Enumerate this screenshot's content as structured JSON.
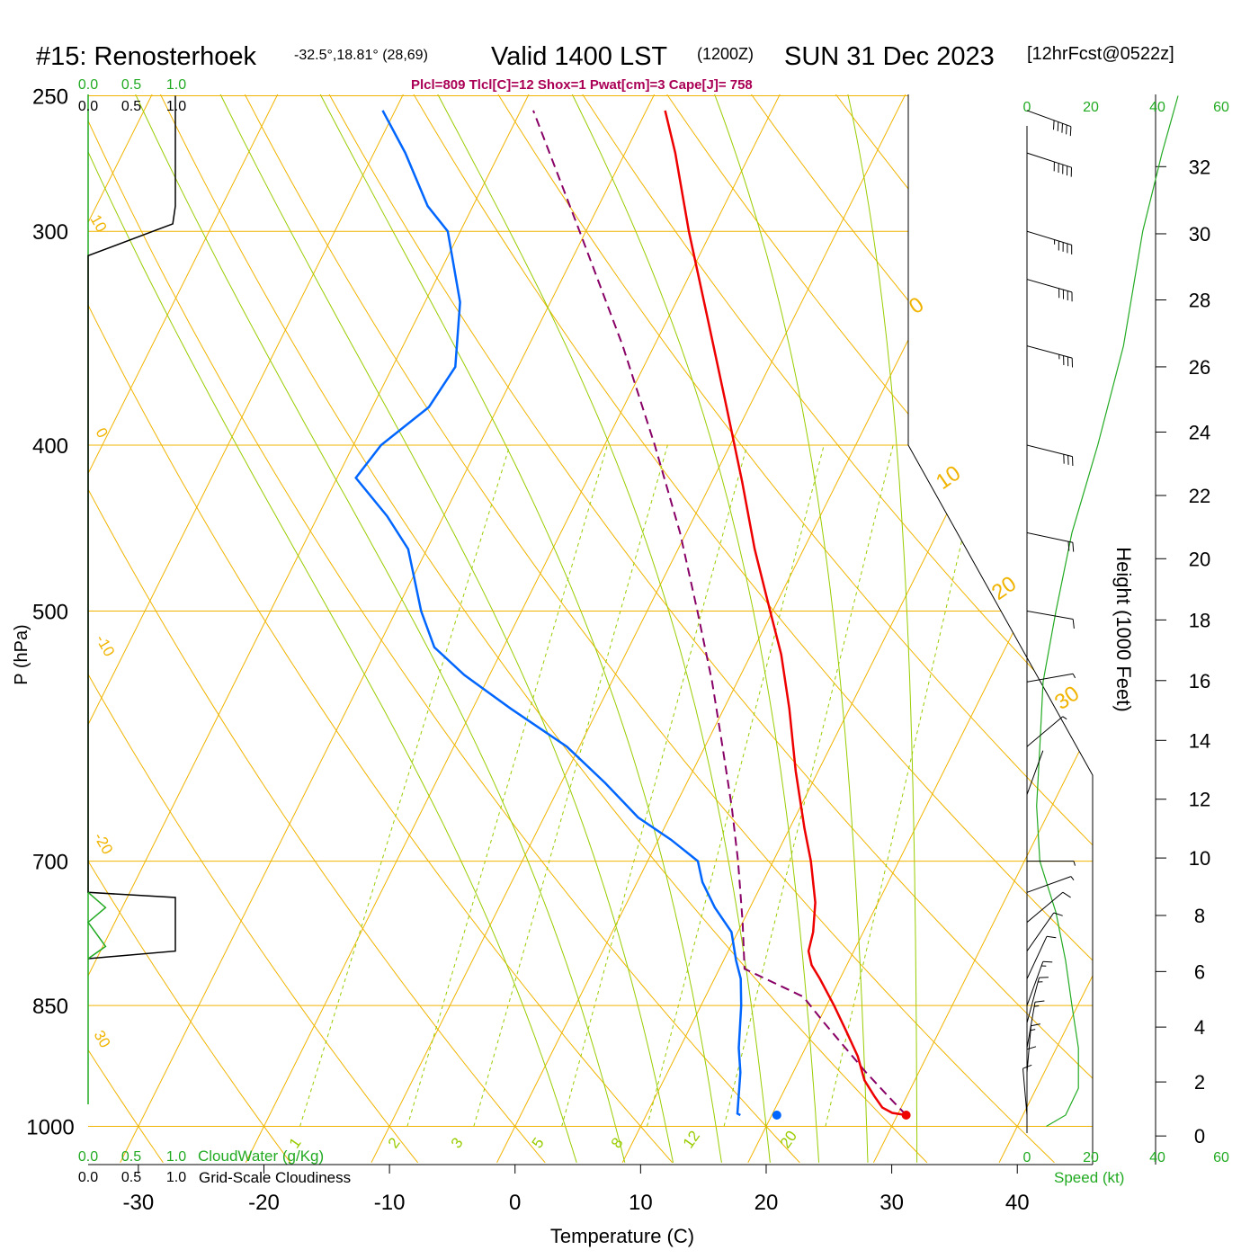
{
  "header": {
    "station": "#15: Renosterhoek",
    "coords": "-32.5°,18.81° (28,69)",
    "valid": "Valid 1400 LST",
    "zulu": "(1200Z)",
    "date": "SUN 31 Dec 2023",
    "fcst": "[12hrFcst@0522z]"
  },
  "indices": "Plcl=809 Tlcl[C]=12 Shox=1 Pwat[cm]=3 Cape[J]= 758",
  "labels": {
    "xlabel": "Temperature (C)",
    "ylabel": "P (hPa)",
    "height_label": "Height (1000 Feet)",
    "cloudwater": "CloudWater (g/Kg)",
    "cloudiness": "Grid-Scale Cloudiness",
    "speed": "Speed (kt)"
  },
  "colors": {
    "temperature": "#ee0000",
    "dewpoint": "#0066ff",
    "parcel": "#880066",
    "isotherm": "#f0b400",
    "dry_adiabat": "#f0b400",
    "moist_adiabat": "#99cc00",
    "mixing_ratio": "#99cc00",
    "cloud_green": "#22aa22",
    "indices": "#aa0055"
  },
  "chart_data": {
    "type": "skew-t",
    "xlim": [
      -34,
      46
    ],
    "ylim_pressure": [
      1030,
      250
    ],
    "x_ticks": [
      -30,
      -20,
      -10,
      0,
      10,
      20,
      30,
      40
    ],
    "pressure_ticks": [
      250,
      300,
      400,
      500,
      700,
      850,
      1000
    ],
    "height_ticks_kft": [
      0,
      2,
      4,
      6,
      8,
      10,
      12,
      14,
      16,
      18,
      20,
      22,
      24,
      26,
      28,
      30,
      32
    ],
    "cloud_ticks": [
      "0.0",
      "0.5",
      "1.0"
    ],
    "speed_ticks": [
      "0",
      "20",
      "40",
      "60"
    ],
    "isotherm_labels": [
      "0",
      "10",
      "20",
      "30"
    ],
    "dry_adiabat_labels": [
      "10",
      "0",
      "-10",
      "-20",
      "30"
    ],
    "mixing_ratio_labels": [
      "1",
      "2",
      "3",
      "5",
      "8",
      "12",
      "20"
    ],
    "temperature": [
      {
        "p": 985,
        "t": 30.7
      },
      {
        "p": 982,
        "t": 29.5
      },
      {
        "p": 975,
        "t": 28.5
      },
      {
        "p": 960,
        "t": 27.4
      },
      {
        "p": 940,
        "t": 26.0
      },
      {
        "p": 910,
        "t": 24.5
      },
      {
        "p": 880,
        "t": 22.6
      },
      {
        "p": 850,
        "t": 20.6
      },
      {
        "p": 820,
        "t": 18.4
      },
      {
        "p": 805,
        "t": 17.2
      },
      {
        "p": 790,
        "t": 16.4
      },
      {
        "p": 770,
        "t": 16.0
      },
      {
        "p": 740,
        "t": 15.0
      },
      {
        "p": 700,
        "t": 13.0
      },
      {
        "p": 670,
        "t": 11.2
      },
      {
        "p": 620,
        "t": 8.2
      },
      {
        "p": 570,
        "t": 5.2
      },
      {
        "p": 530,
        "t": 2.4
      },
      {
        "p": 500,
        "t": -0.2
      },
      {
        "p": 460,
        "t": -3.9
      },
      {
        "p": 420,
        "t": -7.6
      },
      {
        "p": 380,
        "t": -11.8
      },
      {
        "p": 340,
        "t": -16.5
      },
      {
        "p": 300,
        "t": -21.8
      },
      {
        "p": 270,
        "t": -26.0
      },
      {
        "p": 255,
        "t": -28.5
      }
    ],
    "dewpoint": [
      {
        "p": 985,
        "t": 17.5
      },
      {
        "p": 983,
        "t": 17.2
      },
      {
        "p": 960,
        "t": 16.6
      },
      {
        "p": 930,
        "t": 15.8
      },
      {
        "p": 900,
        "t": 14.7
      },
      {
        "p": 850,
        "t": 13.2
      },
      {
        "p": 820,
        "t": 12.1
      },
      {
        "p": 800,
        "t": 11.0
      },
      {
        "p": 770,
        "t": 9.5
      },
      {
        "p": 745,
        "t": 7.2
      },
      {
        "p": 720,
        "t": 5.2
      },
      {
        "p": 700,
        "t": 4.0
      },
      {
        "p": 680,
        "t": 1.0
      },
      {
        "p": 660,
        "t": -2.5
      },
      {
        "p": 630,
        "t": -6.5
      },
      {
        "p": 600,
        "t": -11.0
      },
      {
        "p": 570,
        "t": -17.0
      },
      {
        "p": 545,
        "t": -22.0
      },
      {
        "p": 525,
        "t": -25.5
      },
      {
        "p": 500,
        "t": -28.0
      },
      {
        "p": 460,
        "t": -31.5
      },
      {
        "p": 440,
        "t": -34.5
      },
      {
        "p": 418,
        "t": -38.5
      },
      {
        "p": 400,
        "t": -37.8
      },
      {
        "p": 380,
        "t": -35.5
      },
      {
        "p": 360,
        "t": -35.0
      },
      {
        "p": 330,
        "t": -37.2
      },
      {
        "p": 300,
        "t": -41.0
      },
      {
        "p": 290,
        "t": -43.6
      },
      {
        "p": 270,
        "t": -47.5
      },
      {
        "p": 255,
        "t": -51.0
      }
    ],
    "parcel": [
      {
        "p": 985,
        "t": 30.7
      },
      {
        "p": 960,
        "t": 28.5
      },
      {
        "p": 930,
        "t": 25.8
      },
      {
        "p": 900,
        "t": 23.2
      },
      {
        "p": 870,
        "t": 20.5
      },
      {
        "p": 840,
        "t": 17.8
      },
      {
        "p": 809,
        "t": 12.0
      },
      {
        "p": 760,
        "t": 10.0
      },
      {
        "p": 700,
        "t": 7.2
      },
      {
        "p": 650,
        "t": 4.5
      },
      {
        "p": 600,
        "t": 1.4
      },
      {
        "p": 550,
        "t": -2.0
      },
      {
        "p": 500,
        "t": -6.0
      },
      {
        "p": 450,
        "t": -10.5
      },
      {
        "p": 400,
        "t": -16.0
      },
      {
        "p": 350,
        "t": -22.5
      },
      {
        "p": 300,
        "t": -30.5
      },
      {
        "p": 255,
        "t": -39.0
      }
    ],
    "height_axis_profile": [
      {
        "kft": 0,
        "p": 1013
      },
      {
        "kft": 2,
        "p": 942
      },
      {
        "kft": 4,
        "p": 875
      },
      {
        "kft": 6,
        "p": 812
      },
      {
        "kft": 8,
        "p": 753
      },
      {
        "kft": 10,
        "p": 697
      },
      {
        "kft": 12,
        "p": 644
      },
      {
        "kft": 14,
        "p": 595
      },
      {
        "kft": 16,
        "p": 549
      },
      {
        "kft": 18,
        "p": 506
      },
      {
        "kft": 20,
        "p": 466
      },
      {
        "kft": 22,
        "p": 428
      },
      {
        "kft": 24,
        "p": 393
      },
      {
        "kft": 26,
        "p": 360
      },
      {
        "kft": 28,
        "p": 329
      },
      {
        "kft": 30,
        "p": 301
      },
      {
        "kft": 32,
        "p": 275
      }
    ],
    "wind_speed_kt": [
      {
        "p": 1000,
        "v": 6
      },
      {
        "p": 985,
        "v": 12
      },
      {
        "p": 950,
        "v": 16
      },
      {
        "p": 900,
        "v": 16
      },
      {
        "p": 850,
        "v": 14
      },
      {
        "p": 800,
        "v": 12
      },
      {
        "p": 750,
        "v": 9
      },
      {
        "p": 700,
        "v": 4
      },
      {
        "p": 650,
        "v": 3
      },
      {
        "p": 600,
        "v": 4
      },
      {
        "p": 550,
        "v": 5
      },
      {
        "p": 500,
        "v": 9
      },
      {
        "p": 450,
        "v": 14
      },
      {
        "p": 400,
        "v": 22
      },
      {
        "p": 350,
        "v": 30
      },
      {
        "p": 300,
        "v": 36
      },
      {
        "p": 270,
        "v": 42
      },
      {
        "p": 250,
        "v": 47
      }
    ],
    "cloud_fraction": [
      {
        "p": 250,
        "f": 1.0
      },
      {
        "p": 290,
        "f": 1.0
      },
      {
        "p": 297,
        "f": 0.97
      },
      {
        "p": 310,
        "f": 0.0
      },
      {
        "p": 730,
        "f": 0.0
      },
      {
        "p": 735,
        "f": 1.0
      },
      {
        "p": 790,
        "f": 1.0
      },
      {
        "p": 798,
        "f": 0.0
      }
    ],
    "cloud_water": [
      {
        "p": 730,
        "q": 0.0
      },
      {
        "p": 745,
        "q": 0.2
      },
      {
        "p": 760,
        "q": 0.0
      },
      {
        "p": 785,
        "q": 0.2
      },
      {
        "p": 798,
        "q": 0.0
      }
    ],
    "winds": [
      {
        "p": 985,
        "dir": 175,
        "spd": 12
      },
      {
        "p": 960,
        "dir": 180,
        "spd": 14
      },
      {
        "p": 930,
        "dir": 185,
        "spd": 15
      },
      {
        "p": 900,
        "dir": 190,
        "spd": 16
      },
      {
        "p": 870,
        "dir": 195,
        "spd": 16
      },
      {
        "p": 850,
        "dir": 200,
        "spd": 15
      },
      {
        "p": 820,
        "dir": 205,
        "spd": 13
      },
      {
        "p": 790,
        "dir": 215,
        "spd": 12
      },
      {
        "p": 760,
        "dir": 230,
        "spd": 10
      },
      {
        "p": 730,
        "dir": 250,
        "spd": 8
      },
      {
        "p": 700,
        "dir": 270,
        "spd": 5
      },
      {
        "p": 640,
        "dir": 200,
        "spd": 3
      },
      {
        "p": 600,
        "dir": 230,
        "spd": 5
      },
      {
        "p": 550,
        "dir": 260,
        "spd": 8
      },
      {
        "p": 500,
        "dir": 280,
        "spd": 12
      },
      {
        "p": 450,
        "dir": 282,
        "spd": 20
      },
      {
        "p": 400,
        "dir": 284,
        "spd": 30
      },
      {
        "p": 350,
        "dir": 285,
        "spd": 35
      },
      {
        "p": 320,
        "dir": 286,
        "spd": 40
      },
      {
        "p": 300,
        "dir": 287,
        "spd": 45
      },
      {
        "p": 270,
        "dir": 288,
        "spd": 50
      },
      {
        "p": 255,
        "dir": 290,
        "spd": 50
      }
    ]
  }
}
